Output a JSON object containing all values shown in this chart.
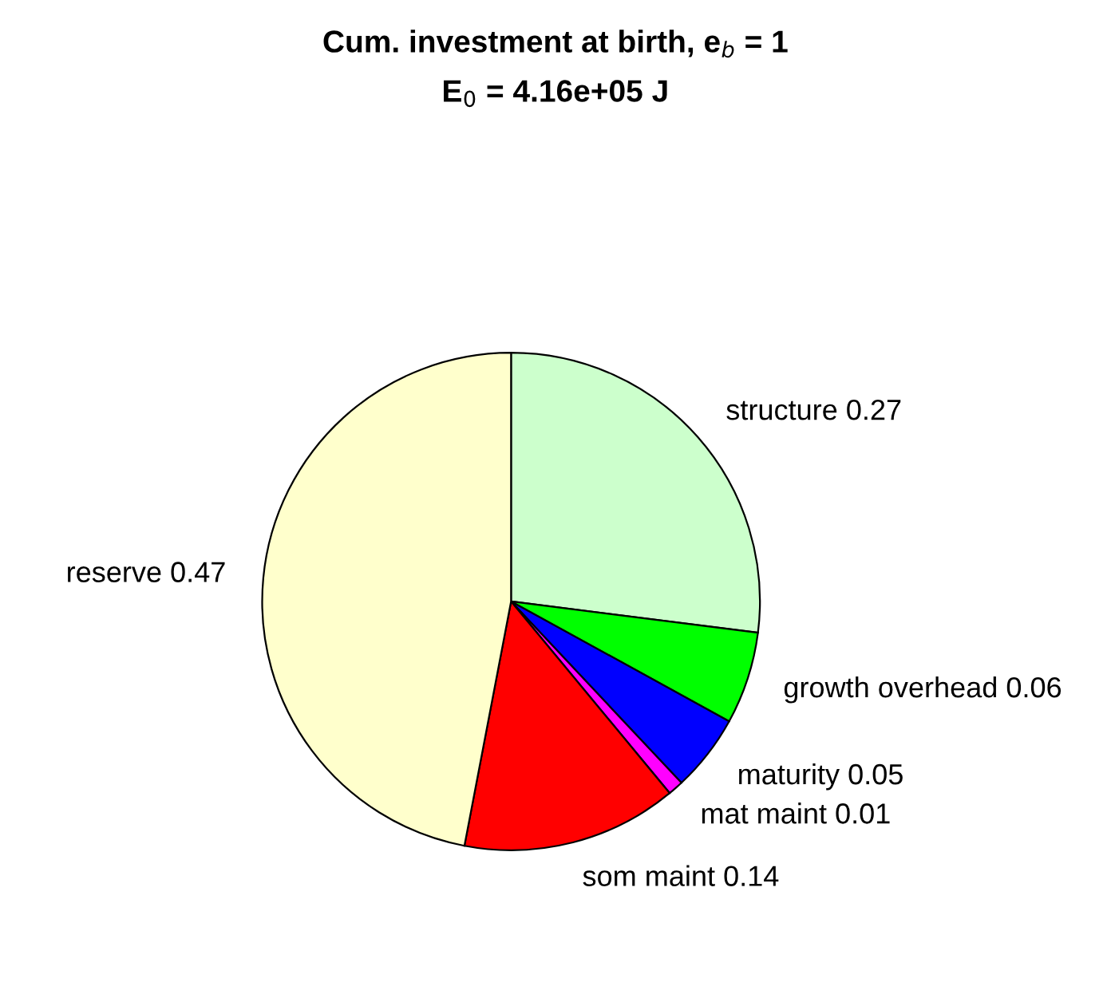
{
  "chart_data": {
    "type": "pie",
    "title": "Cum. investment at birth, e$_{b}$ = 1",
    "subtitle": "E$_{0}$ = 4.16e+05 J",
    "categories": [
      "structure 0.27",
      "growth overhead 0.06",
      "maturity 0.05",
      "mat maint 0.01",
      "som maint 0.14",
      "reserve 0.47"
    ],
    "values": [
      0.27,
      0.06,
      0.05,
      0.01,
      0.14,
      0.47
    ],
    "colors": [
      "#ccffcc",
      "#00ff00",
      "#0000ff",
      "#ff00ff",
      "#ff0000",
      "#ffffcc"
    ],
    "legend": false
  }
}
